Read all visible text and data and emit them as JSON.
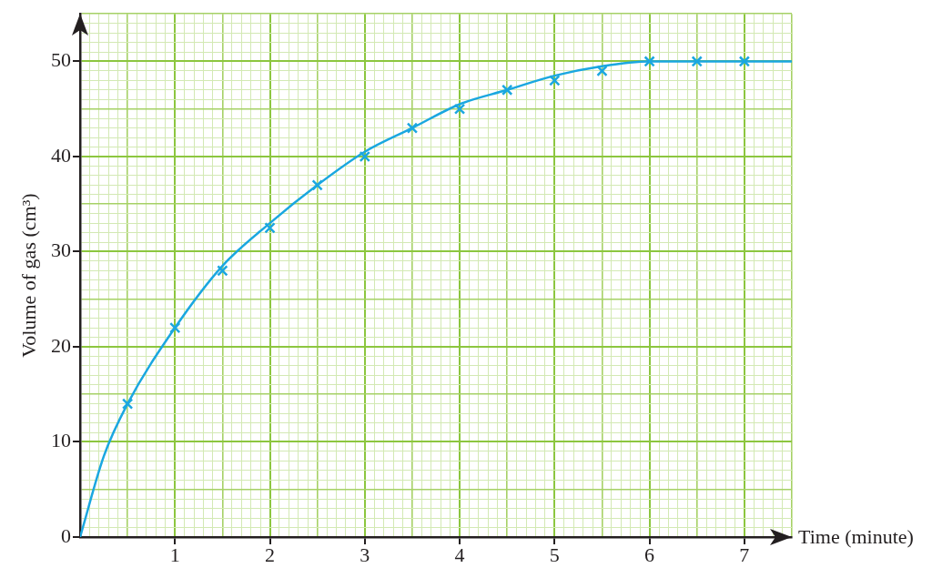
{
  "chart_data": {
    "type": "scatter",
    "xlabel": "Time (minute)",
    "ylabel": "Volume of gas (cm³)",
    "series": [
      {
        "color": "#1aa7e0",
        "x": [
          0.5,
          1,
          1.5,
          2,
          2.5,
          3,
          3.5,
          4,
          4.5,
          5,
          5.5,
          6,
          6.5,
          7
        ],
        "values": [
          14,
          22,
          28,
          32.5,
          37,
          40,
          43,
          45,
          47,
          48,
          49,
          50,
          50,
          50
        ]
      },
      {
        "type": "line",
        "marker": "none",
        "color": "#1aa7e0",
        "x": [
          0,
          0.25,
          0.5,
          1,
          1.5,
          2,
          2.5,
          3,
          3.5,
          4,
          4.5,
          5,
          5.5,
          6,
          7.5
        ],
        "values": [
          0,
          8.5,
          14,
          22,
          28.5,
          33,
          37,
          40.5,
          43,
          45.5,
          47,
          48.5,
          49.5,
          50,
          50
        ]
      }
    ],
    "xlim": [
      0,
      7.5
    ],
    "ylim": [
      0,
      55
    ],
    "xticks": [
      {
        "value": 0,
        "label": null
      },
      {
        "value": 0.1,
        "label": null
      },
      {
        "value": 0.2,
        "label": null
      },
      {
        "value": 0.3,
        "label": null
      },
      {
        "value": 0.4,
        "label": null
      },
      {
        "value": 0.5,
        "label": null
      },
      {
        "value": 0.6,
        "label": null
      },
      {
        "value": 0.7,
        "label": null
      },
      {
        "value": 0.8,
        "label": null
      },
      {
        "value": 0.9,
        "label": null
      },
      1,
      {
        "value": 1.1,
        "label": null
      },
      {
        "value": 1.2,
        "label": null
      },
      {
        "value": 1.3,
        "label": null
      },
      {
        "value": 1.4,
        "label": null
      },
      {
        "value": 1.5,
        "label": null
      },
      {
        "value": 1.6,
        "label": null
      },
      {
        "value": 1.7,
        "label": null
      },
      {
        "value": 1.8,
        "label": null
      },
      {
        "value": 1.9,
        "label": null
      },
      2,
      {
        "value": 2.1,
        "label": null
      },
      {
        "value": 2.2,
        "label": null
      },
      {
        "value": 2.3,
        "label": null
      },
      {
        "value": 2.4,
        "label": null
      },
      {
        "value": 2.5,
        "label": null
      },
      {
        "value": 2.6,
        "label": null
      },
      {
        "value": 2.7,
        "label": null
      },
      {
        "value": 2.8,
        "label": null
      },
      {
        "value": 2.9,
        "label": null
      },
      3,
      {
        "value": 3.1,
        "label": null
      },
      {
        "value": 3.2,
        "label": null
      },
      {
        "value": 3.3,
        "label": null
      },
      {
        "value": 3.4,
        "label": null
      },
      {
        "value": 3.5,
        "label": null
      },
      {
        "value": 3.6,
        "label": null
      },
      {
        "value": 3.7,
        "label": null
      },
      {
        "value": 3.8,
        "label": null
      },
      {
        "value": 3.9,
        "label": null
      },
      4,
      {
        "value": 4.1,
        "label": null
      },
      {
        "value": 4.2,
        "label": null
      },
      {
        "value": 4.3,
        "label": null
      },
      {
        "value": 4.4,
        "label": null
      },
      {
        "value": 4.5,
        "label": null
      },
      {
        "value": 4.6,
        "label": null
      },
      {
        "value": 4.7,
        "label": null
      },
      {
        "value": 4.8,
        "label": null
      },
      {
        "value": 4.9,
        "label": null
      },
      5,
      {
        "value": 5.1,
        "label": null
      },
      {
        "value": 5.2,
        "label": null
      },
      {
        "value": 5.3,
        "label": null
      },
      {
        "value": 5.4,
        "label": null
      },
      {
        "value": 5.5,
        "label": null
      },
      {
        "value": 5.6,
        "label": null
      },
      {
        "value": 5.7,
        "label": null
      },
      {
        "value": 5.8,
        "label": null
      },
      {
        "value": 5.9,
        "label": null
      },
      6,
      {
        "value": 6.1,
        "label": null
      },
      {
        "value": 6.2,
        "label": null
      },
      {
        "value": 6.3,
        "label": null
      },
      {
        "value": 6.4,
        "label": null
      },
      {
        "value": 6.5,
        "label": null
      },
      {
        "value": 6.6,
        "label": null
      },
      {
        "value": 6.7,
        "label": null
      },
      {
        "value": 6.8,
        "label": null
      },
      {
        "value": 6.9,
        "label": null
      },
      7,
      {
        "value": 7.1,
        "label": null
      },
      {
        "value": 7.2,
        "label": null
      },
      {
        "value": 7.3,
        "label": null
      },
      {
        "value": 7.4,
        "label": null
      },
      {
        "value": 7.5,
        "label": null
      }
    ],
    "yticks": [
      0,
      {
        "value": 1,
        "label": null
      },
      {
        "value": 2,
        "label": null
      },
      {
        "value": 3,
        "label": null
      },
      {
        "value": 4,
        "label": null
      },
      {
        "value": 5,
        "label": null
      },
      {
        "value": 6,
        "label": null
      },
      {
        "value": 7,
        "label": null
      },
      {
        "value": 8,
        "label": null
      },
      {
        "value": 9,
        "label": null
      },
      10,
      {
        "value": 11,
        "label": null
      },
      {
        "value": 12,
        "label": null
      },
      {
        "value": 13,
        "label": null
      },
      {
        "value": 14,
        "label": null
      },
      {
        "value": 15,
        "label": null
      },
      {
        "value": 16,
        "label": null
      },
      {
        "value": 17,
        "label": null
      },
      {
        "value": 18,
        "label": null
      },
      {
        "value": 19,
        "label": null
      },
      20,
      {
        "value": 21,
        "label": null
      },
      {
        "value": 22,
        "label": null
      },
      {
        "value": 23,
        "label": null
      },
      {
        "value": 24,
        "label": null
      },
      {
        "value": 25,
        "label": null
      },
      {
        "value": 26,
        "label": null
      },
      {
        "value": 27,
        "label": null
      },
      {
        "value": 28,
        "label": null
      },
      {
        "value": 29,
        "label": null
      },
      30,
      {
        "value": 31,
        "label": null
      },
      {
        "value": 32,
        "label": null
      },
      {
        "value": 33,
        "label": null
      },
      {
        "value": 34,
        "label": null
      },
      {
        "value": 35,
        "label": null
      },
      {
        "value": 36,
        "label": null
      },
      {
        "value": 37,
        "label": null
      },
      {
        "value": 38,
        "label": null
      },
      {
        "value": 39,
        "label": null
      },
      40,
      {
        "value": 41,
        "label": null
      },
      {
        "value": 42,
        "label": null
      },
      {
        "value": 43,
        "label": null
      },
      {
        "value": 44,
        "label": null
      },
      {
        "value": 45,
        "label": null
      },
      {
        "value": 46,
        "label": null
      },
      {
        "value": 47,
        "label": null
      },
      {
        "value": 48,
        "label": null
      },
      {
        "value": 49,
        "label": null
      },
      50,
      {
        "value": 51,
        "label": null
      },
      {
        "value": 52,
        "label": null
      },
      {
        "value": 53,
        "label": null
      },
      {
        "value": 54,
        "label": null
      },
      {
        "value": 55,
        "label": null
      }
    ],
    "grid": true,
    "marker": "cross"
  }
}
